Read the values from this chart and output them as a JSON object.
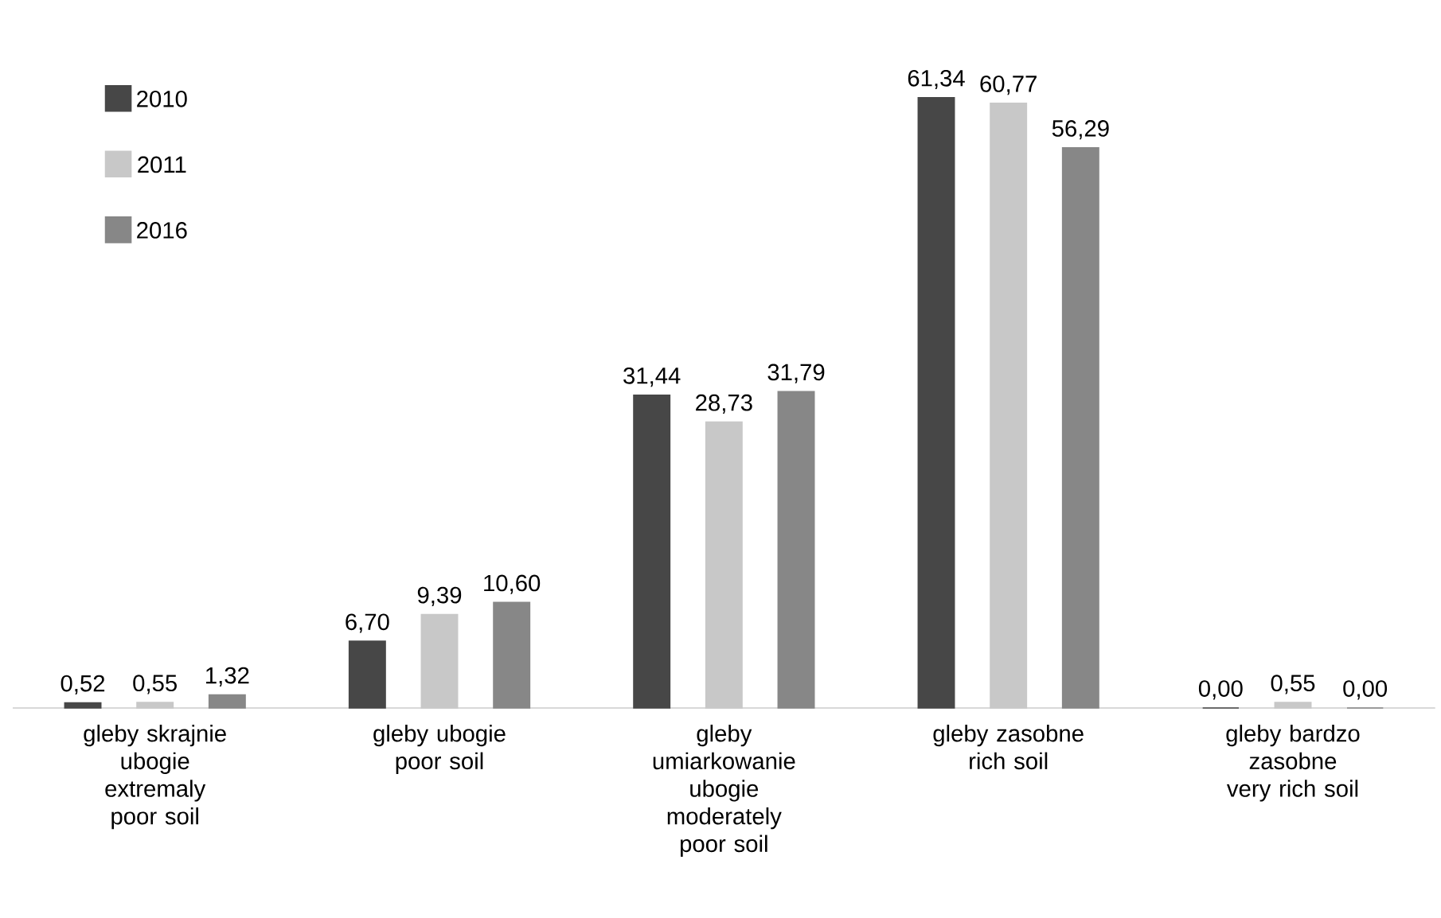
{
  "chart_data": {
    "type": "bar",
    "categories": [
      "gleby skrajnie ubogie extremaly poor soil",
      "gleby ubogie poor soil",
      "gleby umiarkowanie ubogie moderately poor soil",
      "gleby zasobne rich soil",
      "gleby bardzo zasobne very rich soil"
    ],
    "series": [
      {
        "name": "2010",
        "color": "#474747",
        "values": [
          0.52,
          6.7,
          31.44,
          61.34,
          0.0
        ],
        "value_labels": [
          "0,52",
          "6,70",
          "31,44",
          "61,34",
          "0,00"
        ]
      },
      {
        "name": "2011",
        "color": "#c8c8c8",
        "values": [
          0.55,
          9.39,
          28.73,
          60.77,
          0.55
        ],
        "value_labels": [
          "0,55",
          "9,39",
          "28,73",
          "60,77",
          "0,55"
        ]
      },
      {
        "name": "2016",
        "color": "#878787",
        "values": [
          1.32,
          10.6,
          31.79,
          56.29,
          0.0
        ],
        "value_labels": [
          "1,32",
          "10,60",
          "31,79",
          "56,29",
          "0,00"
        ]
      }
    ],
    "legend": "top left"
  }
}
